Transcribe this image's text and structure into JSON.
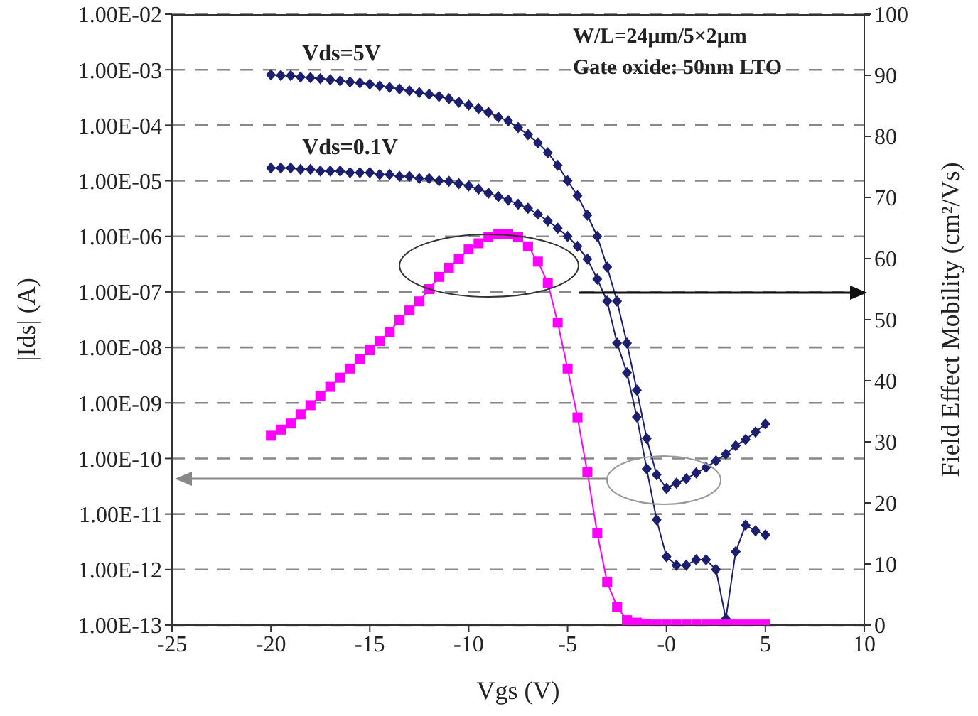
{
  "chart_data": {
    "type": "line",
    "xlabel": "Vgs (V)",
    "ylabel": "|Ids| (A)",
    "y2label": "Field Effect Mobility (cm²/Vs)",
    "annotations": [
      "W/L=24μm/5×2μm",
      "Gate oxide: 50nm LTO"
    ],
    "x": [
      -20,
      -19.5,
      -19,
      -18.5,
      -18,
      -17.5,
      -17,
      -16.5,
      -16,
      -15.5,
      -15,
      -14.5,
      -14,
      -13.5,
      -13,
      -12.5,
      -12,
      -11.5,
      -11,
      -10.5,
      -10,
      -9.5,
      -9,
      -8.5,
      -8,
      -7.5,
      -7,
      -6.5,
      -6,
      -5.5,
      -5,
      -4.5,
      -4,
      -3.5,
      -3,
      -2.5,
      -2,
      -1.5,
      -1,
      -0.5,
      0,
      0.5,
      1,
      1.5,
      2,
      2.5,
      3,
      3.5,
      4,
      4.5,
      5
    ],
    "series": [
      {
        "name": "Vds=5V",
        "color": "#1c1f6e",
        "marker": "diamond",
        "values": [
          0.00081,
          0.00079,
          0.00078,
          0.00074,
          0.00072,
          0.00069,
          0.00066,
          0.00063,
          0.0006,
          0.00058,
          0.00055,
          0.00051,
          0.00048,
          0.00045,
          0.00042,
          0.00039,
          0.00036,
          0.00033,
          0.0003,
          0.00026,
          0.00023,
          0.0002,
          0.00017,
          0.00014,
          0.00012,
          9.1e-05,
          6.8e-05,
          4.8e-05,
          3.2e-05,
          1.9e-05,
          1e-05,
          5.4e-06,
          2.4e-06,
          1e-06,
          2.8e-07,
          6.8e-08,
          1.2e-08,
          1.7e-09,
          2.3e-10,
          5.1e-11,
          2.9e-11,
          3.6e-11,
          4.3e-11,
          5.5e-11,
          6.9e-11,
          9.1e-11,
          1.2e-10,
          1.7e-10,
          2.2e-10,
          3e-10,
          4.2e-10
        ]
      },
      {
        "name": "Vds=0.1V",
        "color": "#1c1f6e",
        "marker": "diamond",
        "values": [
          1.7e-05,
          1.7e-05,
          1.7e-05,
          1.6e-05,
          1.6e-05,
          1.5e-05,
          1.5e-05,
          1.5e-05,
          1.4e-05,
          1.4e-05,
          1.4e-05,
          1.3e-05,
          1.3e-05,
          1.2e-05,
          1.2e-05,
          1.1e-05,
          1.1e-05,
          1e-05,
          9.8e-06,
          8.9e-06,
          8.1e-06,
          7.1e-06,
          6e-06,
          5.2e-06,
          4.5e-06,
          3.8e-06,
          3.2e-06,
          2.5e-06,
          1.9e-06,
          1.4e-06,
          1e-06,
          6.6e-07,
          3.9e-07,
          1.7e-07,
          6.8e-08,
          1.2e-08,
          3.5e-09,
          5.6e-10,
          6.5e-11,
          7.9e-12,
          1.7e-12,
          1.2e-12,
          1.2e-12,
          1.5e-12,
          1.5e-12,
          1e-12,
          1.3e-13,
          2.1e-12,
          6.3e-12,
          5e-12,
          4.2e-12
        ]
      },
      {
        "color": "#ff00ff",
        "marker": "square",
        "axis": "y2",
        "values": [
          31,
          32,
          33,
          34.5,
          36,
          37.5,
          39,
          40.5,
          42,
          43.5,
          45,
          46.5,
          48,
          50,
          51.5,
          53,
          55,
          57,
          58.5,
          60,
          61.5,
          62.5,
          63.5,
          64,
          64,
          63.5,
          62,
          59.5,
          56,
          49.5,
          42,
          34,
          25,
          15,
          7,
          3,
          0.8,
          0.4,
          0.2,
          0.1,
          0.1,
          0.1,
          0.1,
          0.1,
          0.1,
          0.1,
          0.1,
          0.1,
          0.1,
          0.1,
          0.1
        ]
      }
    ],
    "xlim": [
      -25,
      10
    ],
    "xticks": [
      -25,
      -20,
      -15,
      -10,
      -5,
      {
        "value": 0,
        "label": "-0"
      },
      5,
      10
    ],
    "ylim": [
      1e-13,
      0.01
    ],
    "yticks": [
      {
        "value": 1e-13,
        "label": "1.00E-13"
      },
      {
        "value": 1e-12,
        "label": "1.00E-12"
      },
      {
        "value": 1e-11,
        "label": "1.00E-11"
      },
      {
        "value": 1e-10,
        "label": "1.00E-10"
      },
      {
        "value": 1e-09,
        "label": "1.00E-09"
      },
      {
        "value": 1e-08,
        "label": "1.00E-08"
      },
      {
        "value": 1e-07,
        "label": "1.00E-07"
      },
      {
        "value": 1e-06,
        "label": "1.00E-06"
      },
      {
        "value": 1e-05,
        "label": "1.00E-05"
      },
      {
        "value": 0.0001,
        "label": "1.00E-04"
      },
      {
        "value": 0.001,
        "label": "1.00E-03"
      },
      {
        "value": 0.01,
        "label": "1.00E-02"
      }
    ],
    "y2lim": [
      0,
      100
    ],
    "y2ticks": [
      0,
      10,
      20,
      30,
      40,
      50,
      60,
      70,
      80,
      90,
      100
    ],
    "log": "y",
    "grid": "y",
    "legend": false,
    "line_style": "solid"
  }
}
